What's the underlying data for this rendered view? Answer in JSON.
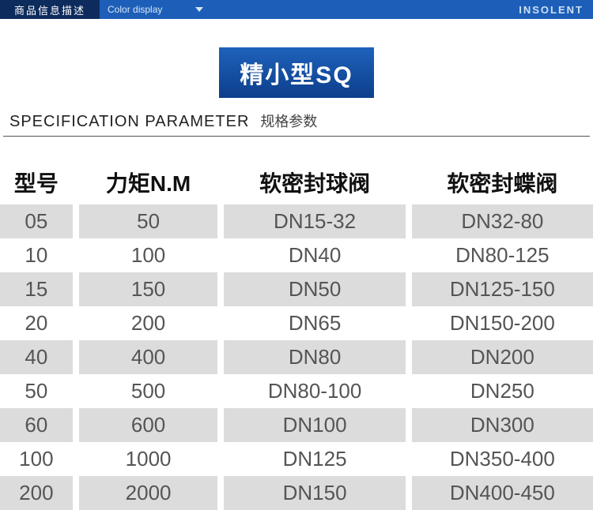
{
  "top_bar": {
    "left_label": "商品信息描述",
    "mid_label": "Color display",
    "right_label": "INSOLENT"
  },
  "title_badge": "精小型SQ",
  "section": {
    "en": "SPECIFICATION PARAMETER",
    "cn": "规格参数"
  },
  "table": {
    "columns": [
      "型号",
      "力矩N.M",
      "软密封球阀",
      "软密封蝶阀"
    ],
    "rows": [
      [
        "05",
        "50",
        "DN15-32",
        "DN32-80"
      ],
      [
        "10",
        "100",
        "DN40",
        "DN80-125"
      ],
      [
        "15",
        "150",
        "DN50",
        "DN125-150"
      ],
      [
        "20",
        "200",
        "DN65",
        "DN150-200"
      ],
      [
        "40",
        "400",
        "DN80",
        "DN200"
      ],
      [
        "50",
        "500",
        "DN80-100",
        "DN250"
      ],
      [
        "60",
        "600",
        "DN100",
        "DN300"
      ],
      [
        "100",
        "1000",
        "DN125",
        "DN350-400"
      ],
      [
        "200",
        "2000",
        "DN150",
        "DN400-450"
      ]
    ],
    "stripe_color": "#dcdcdc",
    "text_color": "#555555",
    "header_color": "#111111",
    "font_size_header": 28,
    "font_size_cell": 26
  },
  "colors": {
    "top_bar_bg": "#1d5fb8",
    "top_bar_left_bg": "#0d2b5c",
    "badge_gradient_top": "#1e62bb",
    "badge_gradient_bottom": "#0d3e8b"
  }
}
